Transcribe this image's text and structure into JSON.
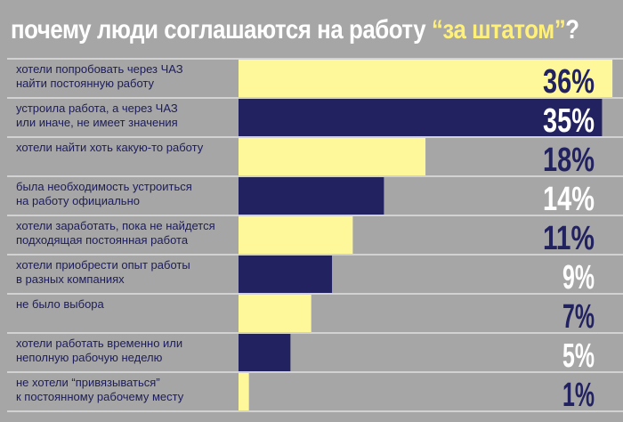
{
  "title": {
    "part1": "почему люди соглашаются на работу ",
    "highlight": "“за штатом”",
    "part2": "?"
  },
  "chart_data": {
    "type": "bar",
    "orientation": "horizontal",
    "categories": [
      [
        "хотели попробовать через ЧАЗ",
        "найти постоянную работу"
      ],
      [
        "устроила работа, а через ЧАЗ",
        "или иначе, не имеет значения"
      ],
      [
        "хотели найти хоть какую-то работу"
      ],
      [
        "была необходимость устроиться",
        "на работу официально"
      ],
      [
        "хотели заработать, пока не найдется",
        "подходящая постоянная работа"
      ],
      [
        "хотели приобрести опыт работы",
        "в разных компаниях"
      ],
      [
        "не было выбора"
      ],
      [
        "хотели работать временно или",
        "неполную рабочую неделю"
      ],
      [
        "не хотели “привязываться”",
        "к постоянному рабочему месту"
      ]
    ],
    "values": [
      36,
      35,
      18,
      14,
      11,
      9,
      7,
      5,
      1
    ],
    "value_labels": [
      "36%",
      "35%",
      "18%",
      "14%",
      "11%",
      "9%",
      "7%",
      "5%",
      "1%"
    ],
    "colors": {
      "bar_light": "#fff89a",
      "bar_dark": "#222260",
      "label_text": "#1c1c5c",
      "background": "#a6a6a6",
      "separator": "#ffffff"
    }
  }
}
